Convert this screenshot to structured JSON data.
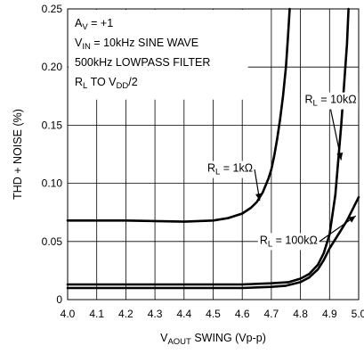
{
  "chart_data": {
    "type": "line",
    "xlabel": {
      "main": "V",
      "sub": "AOUT",
      "rest": " SWING (Vp-p)"
    },
    "ylabel": "THD + NOISE (%)",
    "xlim": [
      4.0,
      5.0
    ],
    "ylim": [
      0,
      0.25
    ],
    "x_ticks": [
      4.0,
      4.1,
      4.2,
      4.3,
      4.4,
      4.5,
      4.6,
      4.7,
      4.8,
      4.9,
      5.0
    ],
    "x_tick_labels": [
      "4.0",
      "4.1",
      "4.2",
      "4.3",
      "4.4",
      "4.5",
      "4.6",
      "4.7",
      "4.8",
      "4.9",
      "5.0"
    ],
    "y_ticks": [
      0,
      0.05,
      0.1,
      0.15,
      0.2,
      0.25
    ],
    "y_tick_labels": [
      "0",
      "0.05",
      "0.10",
      "0.15",
      "0.20",
      "0.25"
    ],
    "grid": true,
    "conditions": [
      {
        "main": "A",
        "sub": "V",
        "rest": " = +1"
      },
      {
        "main": "V",
        "sub": "IN",
        "rest": " = 10kHz SINE WAVE"
      },
      {
        "main": "500kHz LOWPASS FILTER",
        "sub": "",
        "rest": ""
      },
      {
        "main": "R",
        "sub": "L",
        "rest": " TO V",
        "sub2": "DD",
        "rest2": "/2"
      }
    ],
    "series": [
      {
        "name": {
          "main": "R",
          "sub": "L",
          "rest": " = 1kΩ"
        },
        "x": [
          4.0,
          4.2,
          4.4,
          4.5,
          4.55,
          4.6,
          4.63,
          4.65,
          4.67,
          4.69,
          4.7,
          4.71,
          4.72,
          4.73,
          4.74,
          4.75,
          4.757,
          4.763
        ],
        "y": [
          0.068,
          0.068,
          0.067,
          0.068,
          0.07,
          0.074,
          0.079,
          0.084,
          0.092,
          0.104,
          0.112,
          0.124,
          0.138,
          0.155,
          0.175,
          0.2,
          0.225,
          0.25
        ]
      },
      {
        "name": {
          "main": "R",
          "sub": "L",
          "rest": " = 10kΩ"
        },
        "x": [
          4.0,
          4.2,
          4.4,
          4.6,
          4.7,
          4.76,
          4.8,
          4.83,
          4.86,
          4.88,
          4.9,
          4.92,
          4.94,
          4.96,
          4.965
        ],
        "y": [
          0.013,
          0.013,
          0.013,
          0.013,
          0.014,
          0.015,
          0.018,
          0.022,
          0.03,
          0.04,
          0.056,
          0.09,
          0.15,
          0.22,
          0.25
        ]
      },
      {
        "name": {
          "main": "R",
          "sub": "L",
          "rest": " = 100kΩ"
        },
        "x": [
          4.0,
          4.2,
          4.4,
          4.6,
          4.7,
          4.75,
          4.8,
          4.83,
          4.86,
          4.88,
          4.9,
          4.93,
          4.96,
          5.0
        ],
        "y": [
          0.01,
          0.01,
          0.01,
          0.01,
          0.011,
          0.012,
          0.015,
          0.019,
          0.026,
          0.034,
          0.044,
          0.056,
          0.068,
          0.088
        ]
      }
    ],
    "annotations": [
      {
        "series": 0,
        "text": {
          "main": "R",
          "sub": "L",
          "rest": " = 1kΩ"
        },
        "label_at": [
          4.48,
          0.11
        ],
        "arrow_to": [
          4.66,
          0.085
        ]
      },
      {
        "series": 1,
        "text": {
          "main": "R",
          "sub": "L",
          "rest": " = 10kΩ"
        },
        "label_at": [
          4.815,
          0.169
        ],
        "arrow_to": [
          4.94,
          0.12
        ]
      },
      {
        "series": 2,
        "text": {
          "main": "R",
          "sub": "L",
          "rest": " = 100kΩ"
        },
        "label_at": [
          4.66,
          0.048
        ],
        "arrow_to": [
          4.99,
          0.072
        ]
      }
    ]
  }
}
